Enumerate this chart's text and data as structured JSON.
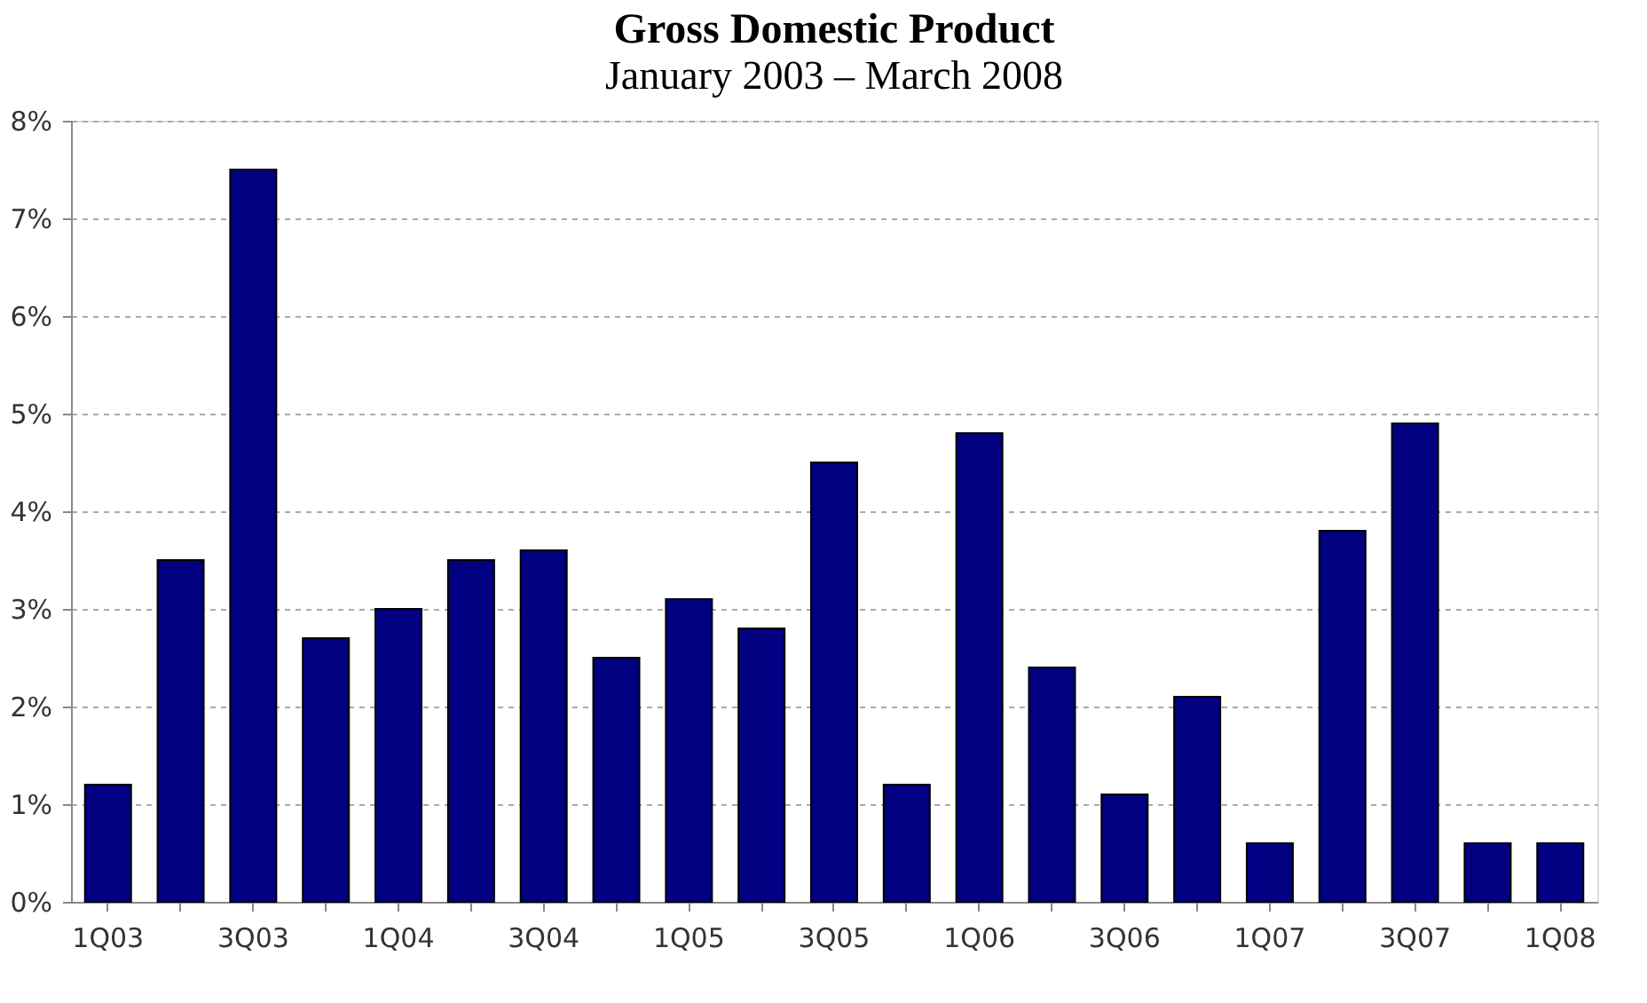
{
  "chart_data": {
    "type": "bar",
    "title": "Gross Domestic Product",
    "subtitle": "January 2003 – March 2008",
    "categories": [
      "1Q03",
      null,
      "3Q03",
      null,
      "1Q04",
      null,
      "3Q04",
      null,
      "1Q05",
      null,
      "3Q05",
      null,
      "1Q06",
      null,
      "3Q06",
      null,
      "1Q07",
      null,
      "3Q07",
      null,
      "1Q08"
    ],
    "values": [
      1.2,
      3.5,
      7.5,
      2.7,
      3.0,
      3.5,
      3.6,
      2.5,
      3.1,
      2.8,
      4.5,
      1.2,
      4.8,
      2.4,
      1.1,
      2.1,
      0.6,
      3.8,
      4.9,
      0.6,
      0.6
    ],
    "color": "#000080",
    "ylim": [
      0,
      8
    ],
    "yticks": [
      {
        "value": 0,
        "label": "0%"
      },
      {
        "value": 1,
        "label": "1%"
      },
      {
        "value": 2,
        "label": "2%"
      },
      {
        "value": 3,
        "label": "3%"
      },
      {
        "value": 4,
        "label": "4%"
      },
      {
        "value": 5,
        "label": "5%"
      },
      {
        "value": 6,
        "label": "6%"
      },
      {
        "value": 7,
        "label": "7%"
      },
      {
        "value": 8,
        "label": "8%"
      }
    ],
    "grid": "y"
  }
}
